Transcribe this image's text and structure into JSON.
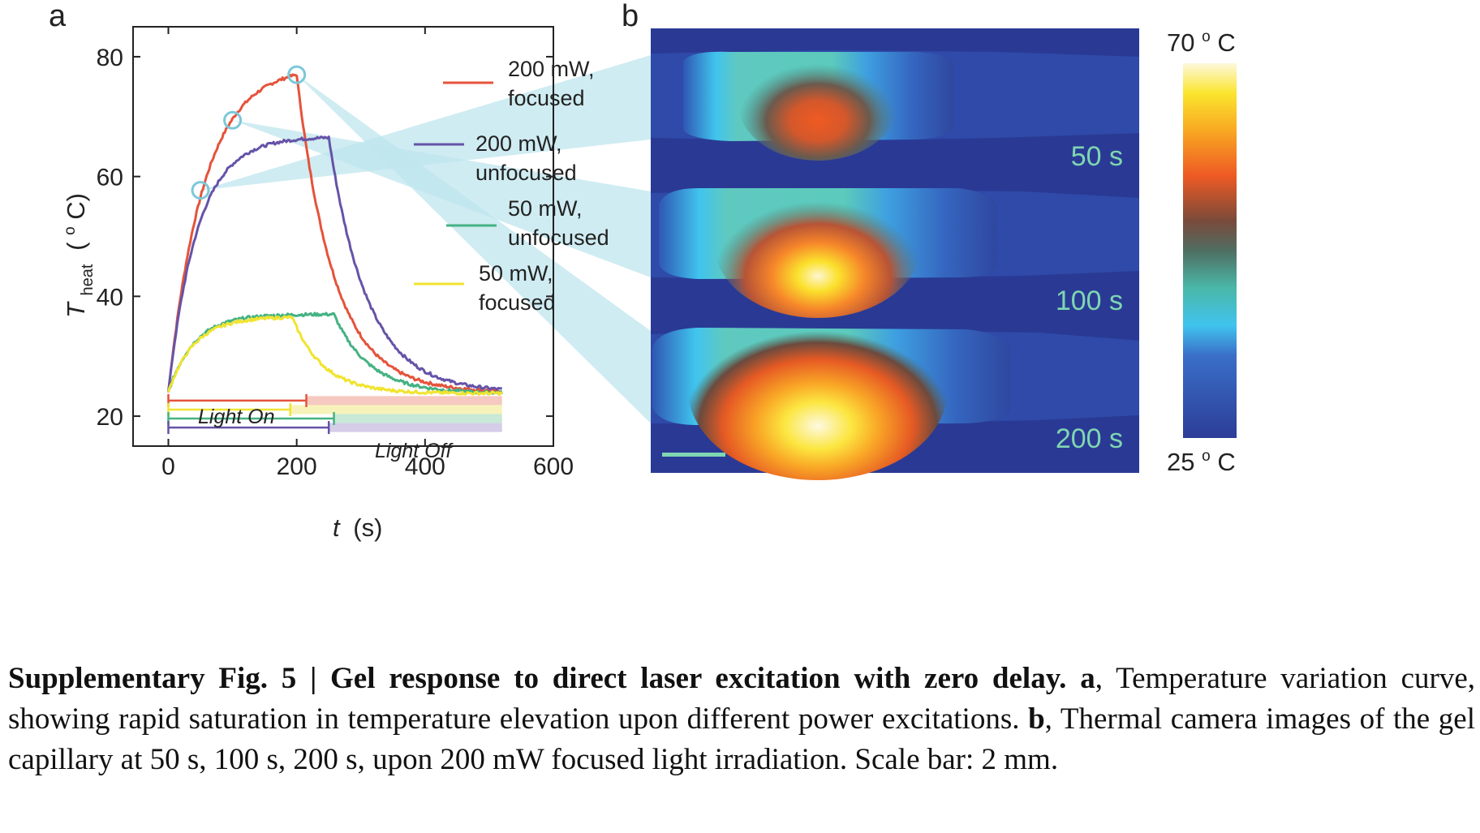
{
  "panel_a": {
    "label": "a",
    "chart_data": {
      "type": "line",
      "xlabel_var": "t",
      "xlabel_unit": "(s)",
      "ylabel_var": "T",
      "ylabel_sub": "heat",
      "ylabel_unit": "(",
      "ylabel_unit_sup": "o",
      "ylabel_unit_end": "C)",
      "xlim": [
        -55,
        600
      ],
      "ylim": [
        15,
        85
      ],
      "xticks": [
        0,
        200,
        400,
        600
      ],
      "yticks": [
        20,
        40,
        60,
        80
      ],
      "legend_position": "top-right",
      "series": [
        {
          "name_line1": "200 mW,",
          "name_line2": "focused",
          "color": "#e5533b",
          "rise_end": 200,
          "plateau_start": 77,
          "peak": 77,
          "tau_rise": 55,
          "tau_decay": 58,
          "final": 24,
          "start": 24
        },
        {
          "name_line1": "200 mW,",
          "name_line2": "unfocused",
          "color": "#6653a8",
          "rise_end": 250,
          "peak": 66.5,
          "tau_rise": 45,
          "tau_decay": 60,
          "final": 24,
          "start": 24
        },
        {
          "name_line1": "50 mW,",
          "name_line2": "unfocused",
          "color": "#45b283",
          "rise_end": 258,
          "peak": 37,
          "tau_rise": 40,
          "tau_decay": 55,
          "final": 23.8,
          "start": 24
        },
        {
          "name_line1": "50 mW,",
          "name_line2": "focused",
          "color": "#f0e430",
          "rise_end": 193,
          "peak": 36.5,
          "tau_rise": 40,
          "tau_decay": 48,
          "final": 23.8,
          "start": 24
        }
      ],
      "markers": [
        {
          "t": 50,
          "T": 57.7
        },
        {
          "t": 100,
          "T": 69.4
        },
        {
          "t": 200,
          "T": 77
        }
      ],
      "marker_color": "#7cc8d8",
      "light_bars": [
        {
          "color": "#e5533b",
          "T": 22.6,
          "on_end": 215,
          "band": "#f5c9c0"
        },
        {
          "color": "#f0e430",
          "T": 21.1,
          "on_end": 190,
          "band": "#f7f2b9"
        },
        {
          "color": "#45b283",
          "T": 19.6,
          "on_end": 258,
          "band": "#c8e8d8"
        },
        {
          "color": "#6653a8",
          "T": 18.1,
          "on_end": 250,
          "band": "#d6cde8"
        }
      ],
      "band_end": 520,
      "light_on_label": "Light On",
      "light_off_label": "Light Off"
    }
  },
  "panel_b": {
    "label": "b",
    "times": [
      "50 s",
      "100 s",
      "200 s"
    ],
    "colorbar_max_num": "70 ",
    "colorbar_max_unit": "C",
    "colorbar_min_num": "25 ",
    "colorbar_min_unit": "C",
    "degree_sup": "o",
    "background": "#2a3a94",
    "scale_bar_color": "#7fd6b2"
  },
  "caption": {
    "title": "Supplementary Fig. 5 | Gel response to direct laser excitation with zero delay.",
    "a_label": "a",
    "a_text": ", Temperature variation curve, showing rapid saturation in temperature elevation upon different power excitations.",
    "b_label": "b",
    "b_text": ", Thermal camera images of the gel capillary at 50 s, 100 s, 200 s, upon 200 mW focused light irradiation. Scale bar: 2 mm."
  }
}
